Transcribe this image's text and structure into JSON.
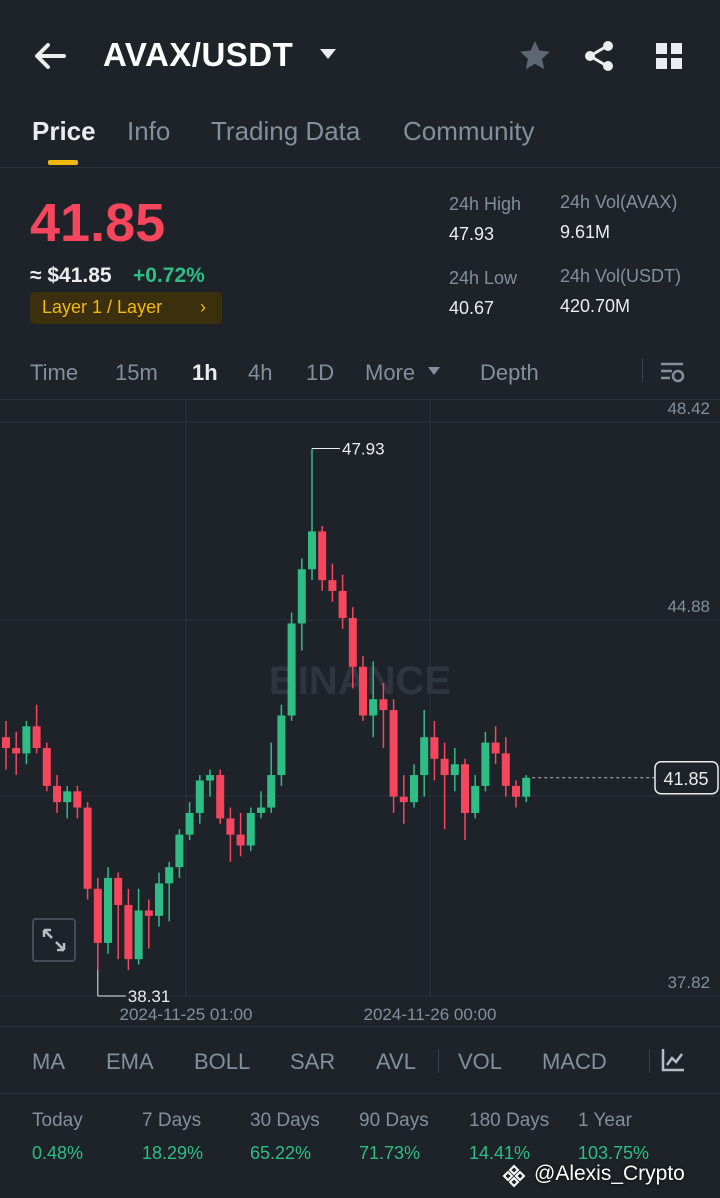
{
  "header": {
    "pair": "AVAX/USDT"
  },
  "tabs": [
    {
      "label": "Price"
    },
    {
      "label": "Info"
    },
    {
      "label": "Trading Data"
    },
    {
      "label": "Community"
    }
  ],
  "ticker": {
    "last_price": "41.85",
    "approx_usd": "≈ $41.85",
    "change_pct": "+0.72%",
    "tag": "Layer 1 / Layer",
    "high_label": "24h High",
    "high_value": "47.93",
    "low_label": "24h Low",
    "low_value": "40.67",
    "vol_base_label": "24h Vol(AVAX)",
    "vol_base_value": "9.61M",
    "vol_quote_label": "24h Vol(USDT)",
    "vol_quote_value": "420.70M"
  },
  "intervals": {
    "items": [
      "Time",
      "15m",
      "1h",
      "4h",
      "1D",
      "More",
      "Depth"
    ],
    "active": "1h"
  },
  "chart_data": {
    "type": "candlestick",
    "interval": "1h",
    "y_ticks": [
      "48.42",
      "44.88",
      "41.30",
      "37.82"
    ],
    "x_ticks": [
      "2024-11-25 01:00",
      "2024-11-26 00:00"
    ],
    "ylim": [
      37.82,
      48.42
    ],
    "max_label": "47.93",
    "min_label": "38.31",
    "last_price_label": "41.85",
    "last_price": 41.85,
    "watermark": "BINANCE",
    "candles": [
      {
        "o": 42.6,
        "h": 42.9,
        "l": 42.0,
        "c": 42.4
      },
      {
        "o": 42.4,
        "h": 42.7,
        "l": 41.9,
        "c": 42.3
      },
      {
        "o": 42.3,
        "h": 42.9,
        "l": 42.1,
        "c": 42.8
      },
      {
        "o": 42.8,
        "h": 43.2,
        "l": 42.3,
        "c": 42.4
      },
      {
        "o": 42.4,
        "h": 42.5,
        "l": 41.6,
        "c": 41.7
      },
      {
        "o": 41.7,
        "h": 41.9,
        "l": 41.2,
        "c": 41.4
      },
      {
        "o": 41.4,
        "h": 41.7,
        "l": 41.1,
        "c": 41.6
      },
      {
        "o": 41.6,
        "h": 41.7,
        "l": 41.1,
        "c": 41.3
      },
      {
        "o": 41.3,
        "h": 41.4,
        "l": 39.6,
        "c": 39.8
      },
      {
        "o": 39.8,
        "h": 40.0,
        "l": 38.3,
        "c": 38.8
      },
      {
        "o": 38.8,
        "h": 40.2,
        "l": 38.6,
        "c": 40.0
      },
      {
        "o": 40.0,
        "h": 40.1,
        "l": 38.5,
        "c": 39.5
      },
      {
        "o": 39.5,
        "h": 39.8,
        "l": 38.3,
        "c": 38.5
      },
      {
        "o": 38.5,
        "h": 39.8,
        "l": 38.4,
        "c": 39.4
      },
      {
        "o": 39.4,
        "h": 39.6,
        "l": 38.7,
        "c": 39.3
      },
      {
        "o": 39.3,
        "h": 40.1,
        "l": 39.1,
        "c": 39.9
      },
      {
        "o": 39.9,
        "h": 40.3,
        "l": 39.2,
        "c": 40.2
      },
      {
        "o": 40.2,
        "h": 40.9,
        "l": 40.0,
        "c": 40.8
      },
      {
        "o": 40.8,
        "h": 41.4,
        "l": 40.7,
        "c": 41.2
      },
      {
        "o": 41.2,
        "h": 41.9,
        "l": 41.0,
        "c": 41.8
      },
      {
        "o": 41.8,
        "h": 42.0,
        "l": 41.5,
        "c": 41.9
      },
      {
        "o": 41.9,
        "h": 42.0,
        "l": 41.0,
        "c": 41.1
      },
      {
        "o": 41.1,
        "h": 41.3,
        "l": 40.3,
        "c": 40.8
      },
      {
        "o": 40.8,
        "h": 41.2,
        "l": 40.4,
        "c": 40.6
      },
      {
        "o": 40.6,
        "h": 41.3,
        "l": 40.5,
        "c": 41.2
      },
      {
        "o": 41.2,
        "h": 41.6,
        "l": 41.1,
        "c": 41.3
      },
      {
        "o": 41.3,
        "h": 42.5,
        "l": 41.2,
        "c": 41.9
      },
      {
        "o": 41.9,
        "h": 43.2,
        "l": 41.7,
        "c": 43.0
      },
      {
        "o": 43.0,
        "h": 44.9,
        "l": 42.9,
        "c": 44.7
      },
      {
        "o": 44.7,
        "h": 45.9,
        "l": 44.2,
        "c": 45.7
      },
      {
        "o": 45.7,
        "h": 47.93,
        "l": 45.5,
        "c": 46.4
      },
      {
        "o": 46.4,
        "h": 46.5,
        "l": 45.3,
        "c": 45.5
      },
      {
        "o": 45.5,
        "h": 45.8,
        "l": 45.1,
        "c": 45.3
      },
      {
        "o": 45.3,
        "h": 45.6,
        "l": 44.6,
        "c": 44.8
      },
      {
        "o": 44.8,
        "h": 45.0,
        "l": 43.5,
        "c": 43.9
      },
      {
        "o": 43.9,
        "h": 44.1,
        "l": 42.9,
        "c": 43.0
      },
      {
        "o": 43.0,
        "h": 44.0,
        "l": 42.6,
        "c": 43.3
      },
      {
        "o": 43.3,
        "h": 43.6,
        "l": 42.4,
        "c": 43.1
      },
      {
        "o": 43.1,
        "h": 43.3,
        "l": 41.2,
        "c": 41.5
      },
      {
        "o": 41.5,
        "h": 41.9,
        "l": 41.0,
        "c": 41.4
      },
      {
        "o": 41.4,
        "h": 42.1,
        "l": 41.3,
        "c": 41.9
      },
      {
        "o": 41.9,
        "h": 43.1,
        "l": 41.5,
        "c": 42.6
      },
      {
        "o": 42.6,
        "h": 42.9,
        "l": 41.8,
        "c": 42.2
      },
      {
        "o": 42.2,
        "h": 42.5,
        "l": 40.9,
        "c": 41.9
      },
      {
        "o": 41.9,
        "h": 42.4,
        "l": 41.6,
        "c": 42.1
      },
      {
        "o": 42.1,
        "h": 42.2,
        "l": 40.7,
        "c": 41.2
      },
      {
        "o": 41.2,
        "h": 41.9,
        "l": 41.1,
        "c": 41.7
      },
      {
        "o": 41.7,
        "h": 42.7,
        "l": 41.6,
        "c": 42.5
      },
      {
        "o": 42.5,
        "h": 42.8,
        "l": 42.1,
        "c": 42.3
      },
      {
        "o": 42.3,
        "h": 42.6,
        "l": 41.5,
        "c": 41.7
      },
      {
        "o": 41.7,
        "h": 41.8,
        "l": 41.3,
        "c": 41.5
      },
      {
        "o": 41.5,
        "h": 41.9,
        "l": 41.4,
        "c": 41.85
      }
    ]
  },
  "indicators": [
    "MA",
    "EMA",
    "BOLL",
    "SAR",
    "AVL",
    "VOL",
    "MACD"
  ],
  "performance": [
    {
      "label": "Today",
      "value": "0.48%"
    },
    {
      "label": "7 Days",
      "value": "18.29%"
    },
    {
      "label": "30 Days",
      "value": "65.22%"
    },
    {
      "label": "90 Days",
      "value": "71.73%"
    },
    {
      "label": "180 Days",
      "value": "14.41%"
    },
    {
      "label": "1 Year",
      "value": "103.75%"
    }
  ],
  "watermark_text": "@Alexis_Crypto",
  "colors": {
    "up": "#2ebd85",
    "down": "#f6465d",
    "accent": "#f0b90b",
    "background": "#1e2329"
  }
}
